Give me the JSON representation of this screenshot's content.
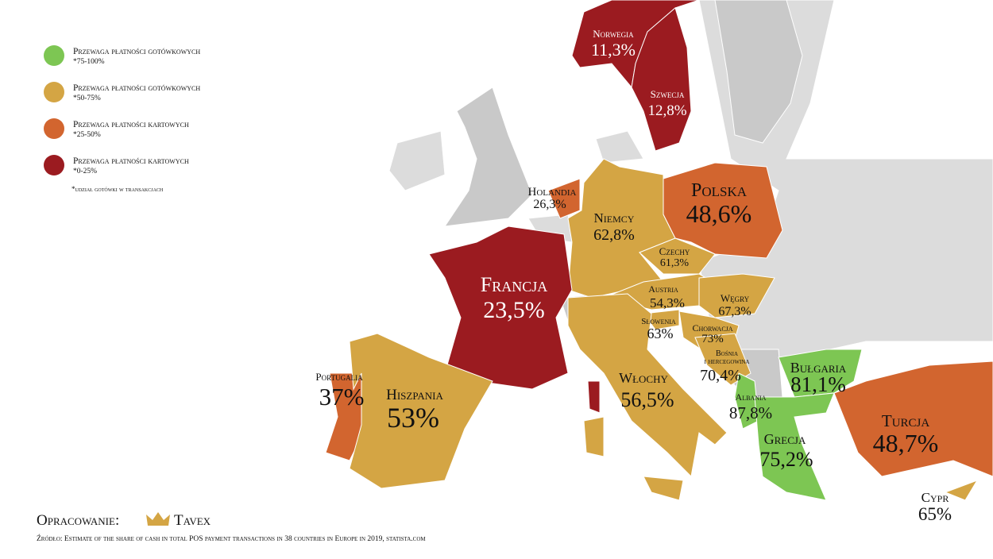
{
  "legend": [
    {
      "label": "Przewaga płatności gotówkowych",
      "range": "*75-100%",
      "color": "#7dc653"
    },
    {
      "label": "Przewaga płatności gotówkowych",
      "range": "*50-75%",
      "color": "#d4a544"
    },
    {
      "label": "Przewaga płatności kartowych",
      "range": "*25-50%",
      "color": "#d2652f"
    },
    {
      "label": "Przewaga płatności kartowych",
      "range": "*0-25%",
      "color": "#9b1b20"
    }
  ],
  "note": "*udział gotówki w transakcjach",
  "countries": [
    {
      "name": "Norwegia",
      "value": "11,3%",
      "color": "#9b1b20"
    },
    {
      "name": "Szwecja",
      "value": "12,8%",
      "color": "#9b1b20"
    },
    {
      "name": "Holandia",
      "value": "26,3%",
      "color": "#d2652f"
    },
    {
      "name": "Niemcy",
      "value": "62,8%",
      "color": "#d4a544"
    },
    {
      "name": "Polska",
      "value": "48,6%",
      "color": "#d2652f"
    },
    {
      "name": "Czechy",
      "value": "61,3%",
      "color": "#d4a544"
    },
    {
      "name": "Francja",
      "value": "23,5%",
      "color": "#9b1b20"
    },
    {
      "name": "Austria",
      "value": "54,3%",
      "color": "#d4a544"
    },
    {
      "name": "Węgry",
      "value": "67,3%",
      "color": "#d4a544"
    },
    {
      "name": "Słowenia",
      "value": "63%",
      "color": "#d4a544"
    },
    {
      "name": "Chorwacja",
      "value": "73%",
      "color": "#d4a544"
    },
    {
      "name": "Bośnia",
      "name_line2": "i hercegowina",
      "value": "70,4%",
      "color": "#d4a544"
    },
    {
      "name": "Portugalia",
      "value": "37%",
      "color": "#d2652f"
    },
    {
      "name": "Hiszpania",
      "value": "53%",
      "color": "#d4a544"
    },
    {
      "name": "Włochy",
      "value": "56,5%",
      "color": "#d4a544"
    },
    {
      "name": "Bułgaria",
      "value": "81,1%",
      "color": "#7dc653"
    },
    {
      "name": "Albania",
      "value": "87,8%",
      "color": "#7dc653"
    },
    {
      "name": "Grecja",
      "value": "75,2%",
      "color": "#7dc653"
    },
    {
      "name": "Turcja",
      "value": "48,7%",
      "color": "#d2652f"
    },
    {
      "name": "Cypr",
      "value": "65%",
      "color": "#d4a544"
    }
  ],
  "footer": {
    "prepared_by": "Opracowanie:",
    "brand": "Tavex",
    "source": "Źródło: Estimate of the share of cash in total POS payment transactions in 38 countries in Europe in 2019, statista.com"
  }
}
